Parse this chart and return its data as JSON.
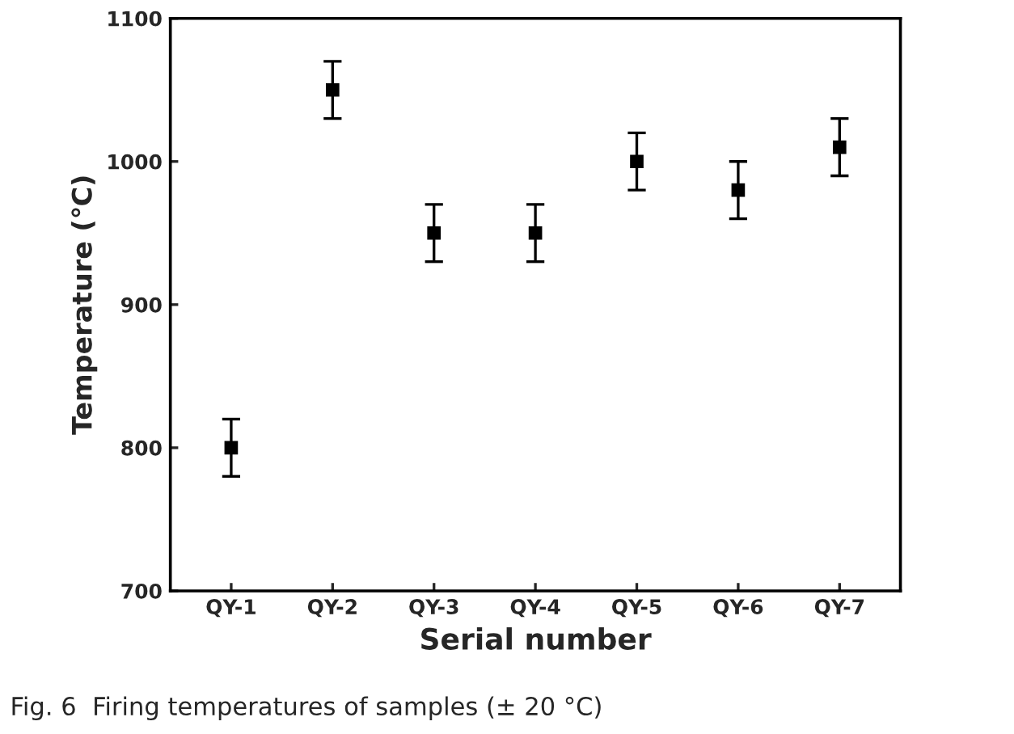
{
  "chart_data": {
    "type": "scatter",
    "xlabel": "Serial number",
    "ylabel": "Temperature (℃)",
    "categories": [
      "QY-1",
      "QY-2",
      "QY-3",
      "QY-4",
      "QY-5",
      "QY-6",
      "QY-7"
    ],
    "values": [
      800,
      1050,
      950,
      950,
      1000,
      980,
      1010
    ],
    "errors": [
      20,
      20,
      20,
      20,
      20,
      20,
      20
    ],
    "color": "#000000",
    "marker": "square",
    "ylim": [
      700,
      1100
    ],
    "yticks": [
      700,
      800,
      900,
      1000,
      1100
    ],
    "grid": false,
    "legend": false,
    "annotations": [
      "Fig. 6  Firing temperatures of samples (± 20 °C)"
    ]
  }
}
